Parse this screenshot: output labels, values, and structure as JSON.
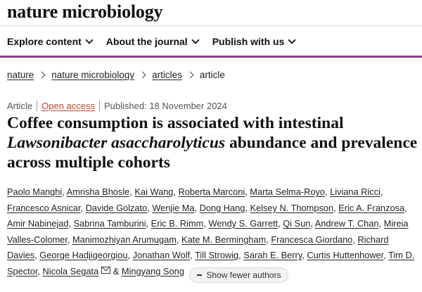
{
  "brand": {
    "name": "nature microbiology"
  },
  "nav": {
    "items": [
      {
        "label": "Explore content"
      },
      {
        "label": "About the journal"
      },
      {
        "label": "Publish with us"
      }
    ],
    "accent_color": "#8d3d8b"
  },
  "breadcrumb": {
    "items": [
      "nature",
      "nature microbiology",
      "articles"
    ],
    "current": "article"
  },
  "meta": {
    "type": "Article",
    "access": "Open access",
    "access_color": "#c0462b",
    "published": "Published: 18 November 2024"
  },
  "title": {
    "part1": "Coffee consumption is associated with intestinal",
    "italic": "Lawsonibacter asaccharolyticus",
    "part2": "abundance and prevalence across multiple cohorts"
  },
  "authors": {
    "list": [
      "Paolo Manghi",
      "Amrisha Bhosle",
      "Kai Wang",
      "Roberta Marconi",
      "Marta Selma-Royo",
      "Liviana Ricci",
      "Francesco Asnicar",
      "Davide Golzato",
      "Wenjie Ma",
      "Dong Hang",
      "Kelsey N. Thompson",
      "Eric A. Franzosa",
      "Amir Nabinejad",
      "Sabrina Tamburini",
      "Eric B. Rimm",
      "Wendy S. Garrett",
      "Qi Sun",
      "Andrew T. Chan",
      "Mireia Valles-Colomer",
      "Manimozhiyan Arumugam",
      "Kate M. Bermingham",
      "Francesca Giordano",
      "Richard Davies",
      "George Hadjigeorgiou",
      "Jonathan Wolf",
      "Till Strowig",
      "Sarah E. Berry",
      "Curtis Huttenhower",
      "Tim D. Spector",
      "Nicola Segata"
    ],
    "ampersand": "&",
    "last": "Mingyang Song",
    "show_fewer_label": "Show fewer authors"
  }
}
